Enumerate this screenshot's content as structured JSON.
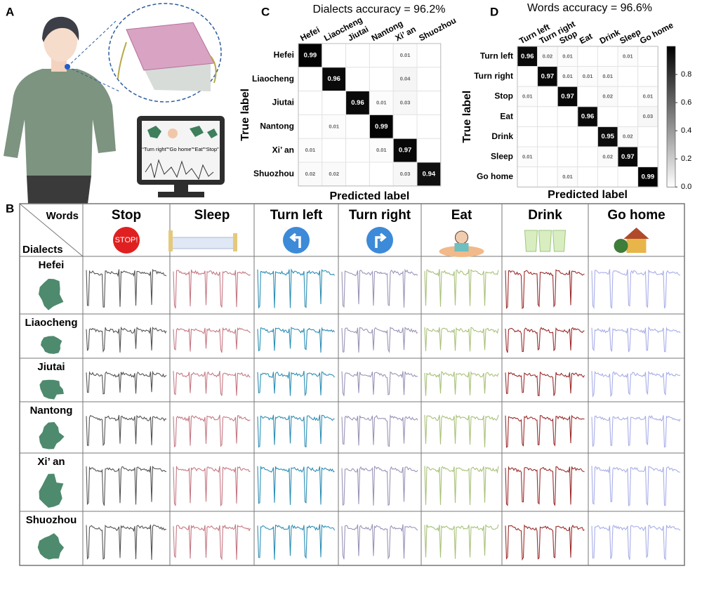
{
  "panel_labels": [
    "A",
    "B",
    "C",
    "D"
  ],
  "panel_a": {
    "screen_text": "“Turn right”“Go home”“Eat”“Stop”"
  },
  "chart_data": [
    {
      "type": "heatmap",
      "title": "Dialects accuracy = 96.2%",
      "x_label": "Predicted label",
      "y_label": "True label",
      "categories": [
        "Hefei",
        "Liaocheng",
        "Jiutai",
        "Nantong",
        "Xi’ an",
        "Shuozhou"
      ],
      "values": [
        [
          0.99,
          null,
          null,
          null,
          0.01,
          null
        ],
        [
          null,
          0.96,
          null,
          null,
          0.04,
          null
        ],
        [
          null,
          null,
          0.96,
          0.01,
          0.03,
          null
        ],
        [
          null,
          0.01,
          null,
          0.99,
          null,
          null
        ],
        [
          0.01,
          null,
          null,
          0.01,
          0.97,
          null
        ],
        [
          0.02,
          0.02,
          null,
          null,
          0.03,
          0.94
        ]
      ]
    },
    {
      "type": "heatmap",
      "title": "Words accuracy = 96.6%",
      "x_label": "Predicted label",
      "y_label": "True label",
      "categories": [
        "Turn left",
        "Turn right",
        "Stop",
        "Eat",
        "Drink",
        "Sleep",
        "Go home"
      ],
      "values": [
        [
          0.96,
          0.02,
          0.01,
          null,
          null,
          0.01,
          null
        ],
        [
          null,
          0.97,
          0.01,
          0.01,
          0.01,
          null,
          null
        ],
        [
          0.01,
          null,
          0.97,
          null,
          0.02,
          null,
          0.01
        ],
        [
          null,
          null,
          null,
          0.96,
          null,
          null,
          0.03
        ],
        [
          null,
          null,
          null,
          null,
          0.95,
          0.02,
          null
        ],
        [
          0.01,
          null,
          null,
          null,
          0.02,
          0.97,
          null
        ],
        [
          null,
          null,
          0.01,
          null,
          null,
          null,
          0.99
        ]
      ],
      "colorbar_lim": [
        0,
        1
      ],
      "colorbar_ticks": [
        {
          "value": 0,
          "label": "0.0"
        },
        0.2,
        0.4,
        0.6,
        0.8
      ]
    }
  ],
  "table": {
    "corner_top": "Words",
    "corner_bottom": "Dialects",
    "columns": [
      "Stop",
      "Sleep",
      "Turn left",
      "Turn right",
      "Eat",
      "Drink",
      "Go home"
    ],
    "rows": [
      "Hefei",
      "Liaocheng",
      "Jiutai",
      "Nantong",
      "Xi’ an",
      "Shuozhou"
    ],
    "stop_sign": "STOP!"
  }
}
